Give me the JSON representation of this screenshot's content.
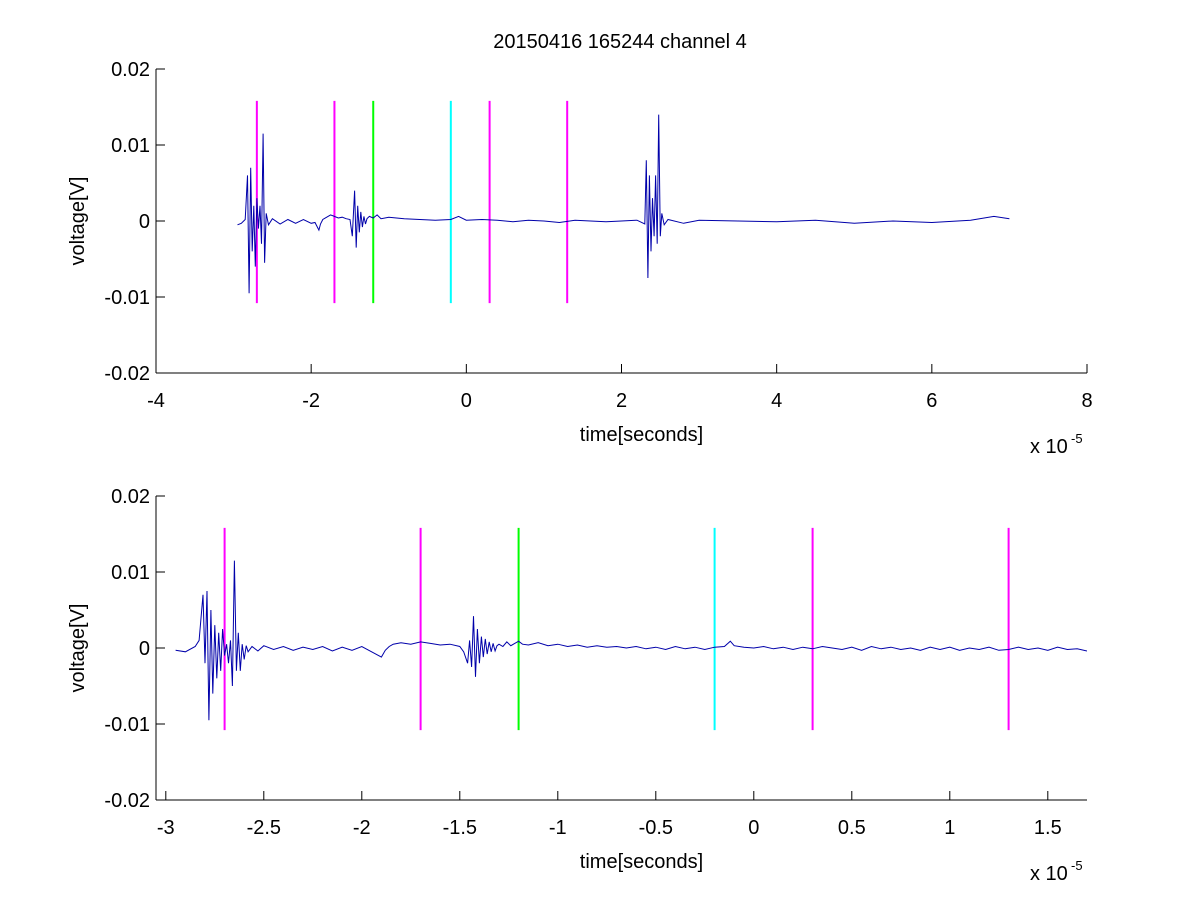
{
  "figure": {
    "title": "20150416 165244 channel 4"
  },
  "chart_data": [
    {
      "type": "line",
      "xlabel": "time[seconds]",
      "ylabel": "voltage[V]",
      "x_exponent_label": "x 10",
      "x_exponent": "-5",
      "xlim": [
        -4,
        8
      ],
      "ylim": [
        -0.02,
        0.02
      ],
      "xticks": [
        "-4",
        "-2",
        "0",
        "2",
        "4",
        "6",
        "8"
      ],
      "xtick_values": [
        -4,
        -2,
        0,
        2,
        4,
        6,
        8
      ],
      "yticks": [
        "-0.02",
        "-0.01",
        "0",
        "0.01",
        "0.02"
      ],
      "ytick_values": [
        -0.02,
        -0.01,
        0,
        0.01,
        0.02
      ],
      "series": [
        {
          "color": "#0000aa",
          "x": [
            -2.95,
            -2.9,
            -2.85,
            -2.82,
            -2.8,
            -2.78,
            -2.76,
            -2.74,
            -2.72,
            -2.7,
            -2.68,
            -2.66,
            -2.64,
            -2.62,
            -2.6,
            -2.58,
            -2.55,
            -2.5,
            -2.4,
            -2.3,
            -2.2,
            -2.1,
            -2.0,
            -1.95,
            -1.9,
            -1.88,
            -1.85,
            -1.8,
            -1.75,
            -1.7,
            -1.65,
            -1.6,
            -1.55,
            -1.5,
            -1.47,
            -1.44,
            -1.42,
            -1.4,
            -1.38,
            -1.36,
            -1.34,
            -1.32,
            -1.3,
            -1.28,
            -1.25,
            -1.2,
            -1.15,
            -1.1,
            -1.0,
            -0.9,
            -0.8,
            -0.6,
            -0.4,
            -0.2,
            -0.1,
            0.0,
            0.2,
            0.4,
            0.6,
            0.8,
            1.0,
            1.2,
            1.4,
            1.6,
            1.8,
            2.0,
            2.2,
            2.3,
            2.32,
            2.34,
            2.36,
            2.38,
            2.4,
            2.42,
            2.44,
            2.46,
            2.48,
            2.5,
            2.52,
            2.55,
            2.6,
            2.8,
            3.0,
            3.5,
            4.0,
            4.5,
            5.0,
            5.5,
            6.0,
            6.5,
            6.8,
            7.0
          ],
          "y": [
            -0.0005,
            -0.0003,
            0.0002,
            0.006,
            -0.0095,
            0.007,
            -0.004,
            0.002,
            -0.006,
            0.003,
            -0.001,
            0.002,
            -0.003,
            0.0115,
            -0.0055,
            0.001,
            -0.0005,
            0.0003,
            -0.0004,
            0.0002,
            -0.0003,
            0.0002,
            -0.0003,
            -0.0002,
            -0.0012,
            -0.0004,
            0.0002,
            0.0005,
            0.0008,
            0.0006,
            0.0004,
            0.0005,
            0.0003,
            0.0002,
            -0.002,
            0.004,
            -0.0035,
            0.002,
            -0.0015,
            0.0012,
            -0.0008,
            0.0006,
            -0.0004,
            0.0003,
            0.0006,
            0.0004,
            0.0008,
            0.0003,
            0.0005,
            0.0004,
            0.0003,
            0.0002,
            0.0001,
            0.0002,
            0.0006,
            0.0001,
            0.0002,
            0.0001,
            -0.0001,
            0.0001,
            0.0,
            -0.0002,
            0.0001,
            0.0,
            -0.0001,
            0.0,
            0.0001,
            -0.0004,
            0.008,
            -0.0075,
            0.006,
            -0.004,
            0.003,
            -0.002,
            0.006,
            -0.003,
            0.014,
            -0.002,
            0.001,
            -0.0005,
            0.0002,
            -0.0003,
            0.0001,
            0.0,
            -0.0001,
            0.0001,
            -0.0003,
            0.0,
            -0.0002,
            0.0001,
            0.0006,
            0.0003
          ]
        }
      ],
      "markers": [
        {
          "x": -2.7,
          "color": "#ff00ff"
        },
        {
          "x": -1.7,
          "color": "#ff00ff"
        },
        {
          "x": -1.2,
          "color": "#00ff00"
        },
        {
          "x": -0.2,
          "color": "#00ffff"
        },
        {
          "x": 0.3,
          "color": "#ff00ff"
        },
        {
          "x": 1.3,
          "color": "#ff00ff"
        }
      ],
      "marker_range": [
        -0.0108,
        0.0158
      ]
    },
    {
      "type": "line",
      "xlabel": "time[seconds]",
      "ylabel": "voltage[V]",
      "x_exponent_label": "x 10",
      "x_exponent": "-5",
      "xlim": [
        -3.05,
        1.7
      ],
      "ylim": [
        -0.02,
        0.02
      ],
      "xticks": [
        "-3",
        "-2.5",
        "-2",
        "-1.5",
        "-1",
        "-0.5",
        "0",
        "0.5",
        "1",
        "1.5"
      ],
      "xtick_values": [
        -3,
        -2.5,
        -2,
        -1.5,
        -1,
        -0.5,
        0,
        0.5,
        1,
        1.5
      ],
      "yticks": [
        "-0.02",
        "-0.01",
        "0",
        "0.01",
        "0.02"
      ],
      "ytick_values": [
        -0.02,
        -0.01,
        0,
        0.01,
        0.02
      ],
      "series": [
        {
          "color": "#0000aa",
          "x": [
            -2.95,
            -2.9,
            -2.85,
            -2.83,
            -2.81,
            -2.8,
            -2.79,
            -2.78,
            -2.77,
            -2.76,
            -2.75,
            -2.74,
            -2.73,
            -2.72,
            -2.71,
            -2.7,
            -2.69,
            -2.68,
            -2.67,
            -2.66,
            -2.65,
            -2.64,
            -2.63,
            -2.62,
            -2.61,
            -2.6,
            -2.59,
            -2.58,
            -2.56,
            -2.53,
            -2.5,
            -2.45,
            -2.4,
            -2.35,
            -2.3,
            -2.25,
            -2.2,
            -2.15,
            -2.1,
            -2.05,
            -2.0,
            -1.95,
            -1.9,
            -1.88,
            -1.86,
            -1.84,
            -1.8,
            -1.75,
            -1.7,
            -1.65,
            -1.6,
            -1.55,
            -1.5,
            -1.48,
            -1.46,
            -1.45,
            -1.44,
            -1.43,
            -1.42,
            -1.41,
            -1.4,
            -1.39,
            -1.38,
            -1.37,
            -1.36,
            -1.35,
            -1.34,
            -1.33,
            -1.32,
            -1.31,
            -1.3,
            -1.28,
            -1.26,
            -1.24,
            -1.22,
            -1.2,
            -1.18,
            -1.15,
            -1.1,
            -1.05,
            -1.0,
            -0.95,
            -0.9,
            -0.85,
            -0.8,
            -0.75,
            -0.7,
            -0.65,
            -0.6,
            -0.55,
            -0.5,
            -0.45,
            -0.4,
            -0.35,
            -0.3,
            -0.25,
            -0.2,
            -0.15,
            -0.12,
            -0.1,
            -0.05,
            0.0,
            0.05,
            0.1,
            0.15,
            0.2,
            0.25,
            0.3,
            0.35,
            0.4,
            0.45,
            0.5,
            0.55,
            0.6,
            0.65,
            0.7,
            0.75,
            0.8,
            0.85,
            0.9,
            0.95,
            1.0,
            1.05,
            1.1,
            1.15,
            1.2,
            1.25,
            1.3,
            1.35,
            1.4,
            1.45,
            1.5,
            1.55,
            1.6,
            1.65,
            1.7
          ],
          "y": [
            -0.0003,
            -0.0005,
            0.0002,
            0.001,
            0.007,
            -0.002,
            0.0075,
            -0.0095,
            0.005,
            -0.006,
            0.003,
            -0.004,
            0.002,
            -0.003,
            0.0025,
            -0.001,
            0.0005,
            -0.002,
            0.001,
            -0.005,
            0.0115,
            -0.003,
            0.002,
            -0.003,
            0.0005,
            -0.0015,
            0.0003,
            -0.0005,
            0.0002,
            -0.0004,
            0.0003,
            -0.0002,
            0.0002,
            -0.0003,
            0.0001,
            -0.0002,
            0.0002,
            -0.0004,
            0.0001,
            -0.0003,
            0.0002,
            -0.0005,
            -0.0012,
            -0.0003,
            0.0002,
            0.0005,
            0.0007,
            0.0005,
            0.0008,
            0.0006,
            0.0004,
            0.0005,
            0.0002,
            -0.0005,
            -0.002,
            0.001,
            -0.0025,
            0.0042,
            -0.0038,
            0.0025,
            -0.002,
            0.0015,
            -0.0012,
            0.0012,
            -0.0008,
            0.0008,
            -0.0005,
            0.0006,
            -0.0004,
            0.0003,
            0.0005,
            0.0002,
            0.0008,
            0.0003,
            0.0006,
            0.0009,
            0.0005,
            0.0004,
            0.0007,
            0.0003,
            0.0005,
            0.0002,
            0.0004,
            0.0001,
            0.0003,
            0.0001,
            0.0002,
            0.0,
            0.0002,
            -0.0001,
            0.0001,
            -0.0002,
            0.0002,
            -0.0001,
            0.0001,
            -0.0002,
            0.0001,
            0.0002,
            0.0009,
            0.0003,
            0.0001,
            0.0,
            0.0002,
            -0.0001,
            0.0001,
            -0.0002,
            0.0001,
            -0.0001,
            0.0002,
            0.0,
            -0.0002,
            0.0001,
            -0.0003,
            0.0002,
            -0.0001,
            0.0001,
            -0.0002,
            0.0,
            -0.0003,
            0.0001,
            -0.0002,
            0.0001,
            -0.0003,
            0.0,
            -0.0002,
            0.0001,
            -0.0003,
            -0.0002,
            0.0001,
            -0.0002,
            0.0,
            -0.0003,
            0.0001,
            -0.0002,
            -0.0001,
            -0.0004
          ]
        }
      ],
      "markers": [
        {
          "x": -2.7,
          "color": "#ff00ff"
        },
        {
          "x": -1.7,
          "color": "#ff00ff"
        },
        {
          "x": -1.2,
          "color": "#00ff00"
        },
        {
          "x": -0.2,
          "color": "#00ffff"
        },
        {
          "x": 0.3,
          "color": "#ff00ff"
        },
        {
          "x": 1.3,
          "color": "#ff00ff"
        }
      ],
      "marker_range": [
        -0.0108,
        0.0158
      ]
    }
  ]
}
